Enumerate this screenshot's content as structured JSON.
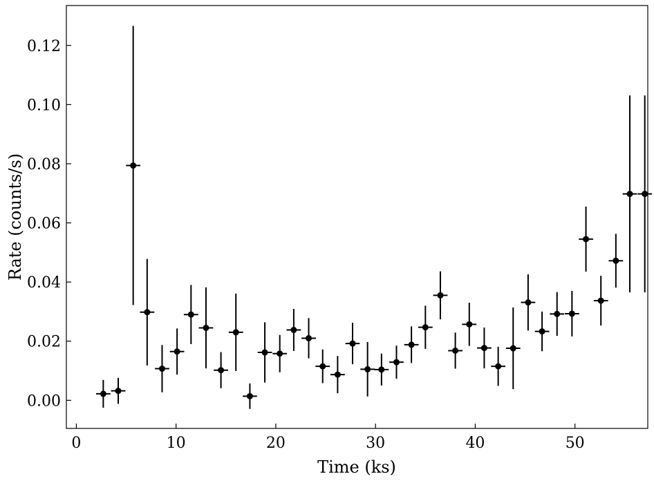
{
  "chart_data": {
    "type": "scatter",
    "title": "",
    "xlabel": "Time (ks)",
    "ylabel": "Rate (counts/s)",
    "xlim": [
      -1,
      57.3
    ],
    "ylim": [
      -0.0095,
      0.1335
    ],
    "xticks": [
      0,
      10,
      20,
      30,
      40,
      50
    ],
    "xtick_labels": [
      "0",
      "10",
      "20",
      "30",
      "40",
      "50"
    ],
    "yticks": [
      0.0,
      0.02,
      0.04,
      0.06,
      0.08,
      0.1,
      0.12
    ],
    "ytick_labels": [
      "0.00",
      "0.02",
      "0.04",
      "0.06",
      "0.08",
      "0.10",
      "0.12"
    ],
    "grid": false,
    "x_halfwidth": 0.72,
    "marker_color": "#000000",
    "series": [
      {
        "x": [
          2.7,
          4.2,
          5.7,
          7.1,
          8.6,
          10.1,
          11.5,
          13.0,
          14.5,
          16.0,
          17.4,
          18.9,
          20.4,
          21.8,
          23.3,
          24.7,
          26.2,
          27.7,
          29.2,
          30.6,
          32.1,
          33.6,
          35.0,
          36.5,
          38.0,
          39.4,
          40.9,
          42.3,
          43.8,
          45.3,
          46.7,
          48.2,
          49.7,
          51.1,
          52.6,
          54.1,
          55.5,
          57.0
        ],
        "y": [
          0.0022,
          0.0032,
          0.0794,
          0.0298,
          0.0107,
          0.0165,
          0.029,
          0.0245,
          0.0102,
          0.023,
          0.0014,
          0.0162,
          0.0158,
          0.0238,
          0.021,
          0.0115,
          0.0087,
          0.0192,
          0.0105,
          0.0104,
          0.0129,
          0.0188,
          0.0247,
          0.0355,
          0.0168,
          0.0257,
          0.0177,
          0.0115,
          0.0176,
          0.0331,
          0.0233,
          0.0292,
          0.0293,
          0.0545,
          0.0337,
          0.0472,
          0.0698,
          0.0698
        ],
        "yerr": [
          0.0047,
          0.0044,
          0.0472,
          0.018,
          0.008,
          0.0078,
          0.01,
          0.0137,
          0.0061,
          0.0131,
          0.0043,
          0.0102,
          0.0063,
          0.0071,
          0.0068,
          0.0057,
          0.0063,
          0.007,
          0.0092,
          0.0054,
          0.0056,
          0.0062,
          0.0073,
          0.0081,
          0.0061,
          0.0073,
          0.0069,
          0.0066,
          0.0138,
          0.0095,
          0.0067,
          0.0074,
          0.0077,
          0.011,
          0.0084,
          0.0091,
          0.0333,
          0.0333
        ]
      }
    ]
  }
}
